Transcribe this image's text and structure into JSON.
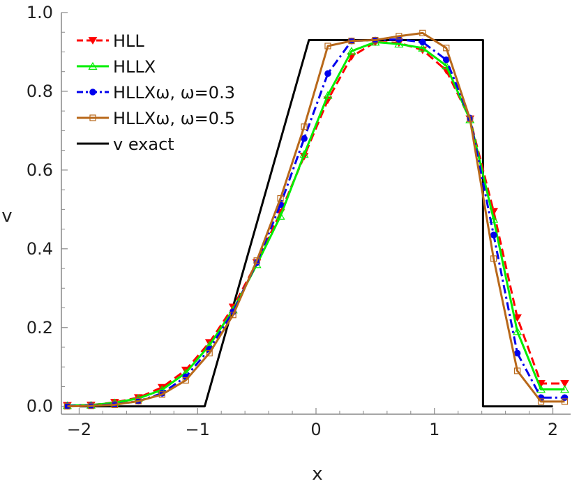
{
  "chart_data": {
    "type": "line",
    "xlabel": "x",
    "ylabel": "v",
    "xlim": [
      -2.15,
      2.15
    ],
    "ylim": [
      -0.02,
      1.0
    ],
    "x_ticks": [
      -2,
      -1,
      0,
      1,
      2
    ],
    "x_tick_labels": [
      "−2",
      "−1",
      "0",
      "1",
      "2"
    ],
    "y_ticks": [
      0.0,
      0.2,
      0.4,
      0.6,
      0.8,
      1.0
    ],
    "y_tick_labels": [
      "0.0",
      "0.2",
      "0.4",
      "0.6",
      "0.8",
      "1.0"
    ],
    "legend_position": "top-left",
    "series": [
      {
        "name": "HLL",
        "color": "#ff0000",
        "dash": "dashed",
        "marker": "triangle-down-filled",
        "x": [
          -2.1,
          -1.9,
          -1.7,
          -1.5,
          -1.3,
          -1.1,
          -0.9,
          -0.7,
          -0.5,
          -0.3,
          -0.1,
          0.1,
          0.3,
          0.5,
          0.7,
          0.9,
          1.1,
          1.3,
          1.5,
          1.7,
          1.9,
          2.1
        ],
        "y": [
          0.002,
          0.003,
          0.01,
          0.022,
          0.048,
          0.092,
          0.162,
          0.252,
          0.365,
          0.492,
          0.635,
          0.778,
          0.888,
          0.925,
          0.923,
          0.905,
          0.853,
          0.73,
          0.495,
          0.225,
          0.058,
          0.058
        ]
      },
      {
        "name": "HLLX",
        "color": "#00ee00",
        "dash": "solid",
        "marker": "triangle-up-open",
        "x": [
          -2.1,
          -1.9,
          -1.7,
          -1.5,
          -1.3,
          -1.1,
          -0.9,
          -0.7,
          -0.5,
          -0.3,
          -0.1,
          0.1,
          0.3,
          0.5,
          0.7,
          0.9,
          1.1,
          1.3,
          1.5,
          1.7,
          1.9,
          2.1
        ],
        "y": [
          0.002,
          0.003,
          0.009,
          0.02,
          0.042,
          0.085,
          0.155,
          0.245,
          0.36,
          0.483,
          0.64,
          0.79,
          0.902,
          0.925,
          0.92,
          0.91,
          0.865,
          0.728,
          0.475,
          0.19,
          0.043,
          0.043
        ]
      },
      {
        "name": "HLLXω, ω=0.3",
        "color": "#0000ee",
        "dash": "dashdot",
        "marker": "circle-filled",
        "x": [
          -2.1,
          -1.9,
          -1.7,
          -1.5,
          -1.3,
          -1.1,
          -0.9,
          -0.7,
          -0.5,
          -0.3,
          -0.1,
          0.1,
          0.3,
          0.5,
          0.7,
          0.9,
          1.1,
          1.3,
          1.5,
          1.7,
          1.9,
          2.1
        ],
        "y": [
          0.001,
          0.002,
          0.005,
          0.013,
          0.033,
          0.075,
          0.145,
          0.24,
          0.365,
          0.512,
          0.68,
          0.845,
          0.928,
          0.93,
          0.932,
          0.925,
          0.88,
          0.732,
          0.435,
          0.135,
          0.022,
          0.022
        ]
      },
      {
        "name": "HLLXω, ω=0.5",
        "color": "#b8681a",
        "dash": "solid",
        "marker": "square-open",
        "x": [
          -2.1,
          -1.9,
          -1.7,
          -1.5,
          -1.3,
          -1.1,
          -0.9,
          -0.7,
          -0.5,
          -0.3,
          -0.1,
          0.1,
          0.3,
          0.5,
          0.7,
          0.9,
          1.1,
          1.3,
          1.5,
          1.7,
          1.9,
          2.1
        ],
        "y": [
          0.0,
          0.001,
          0.004,
          0.013,
          0.03,
          0.066,
          0.135,
          0.232,
          0.37,
          0.528,
          0.71,
          0.915,
          0.928,
          0.93,
          0.94,
          0.948,
          0.91,
          0.73,
          0.375,
          0.09,
          0.012,
          0.012
        ]
      },
      {
        "name": "v exact",
        "color": "#000000",
        "dash": "solid",
        "marker": "none",
        "x": [
          -2.0,
          -0.94,
          -0.06,
          1.41,
          1.41,
          2.0
        ],
        "y": [
          0.0,
          0.0,
          0.93,
          0.93,
          0.0,
          0.0
        ]
      }
    ]
  }
}
